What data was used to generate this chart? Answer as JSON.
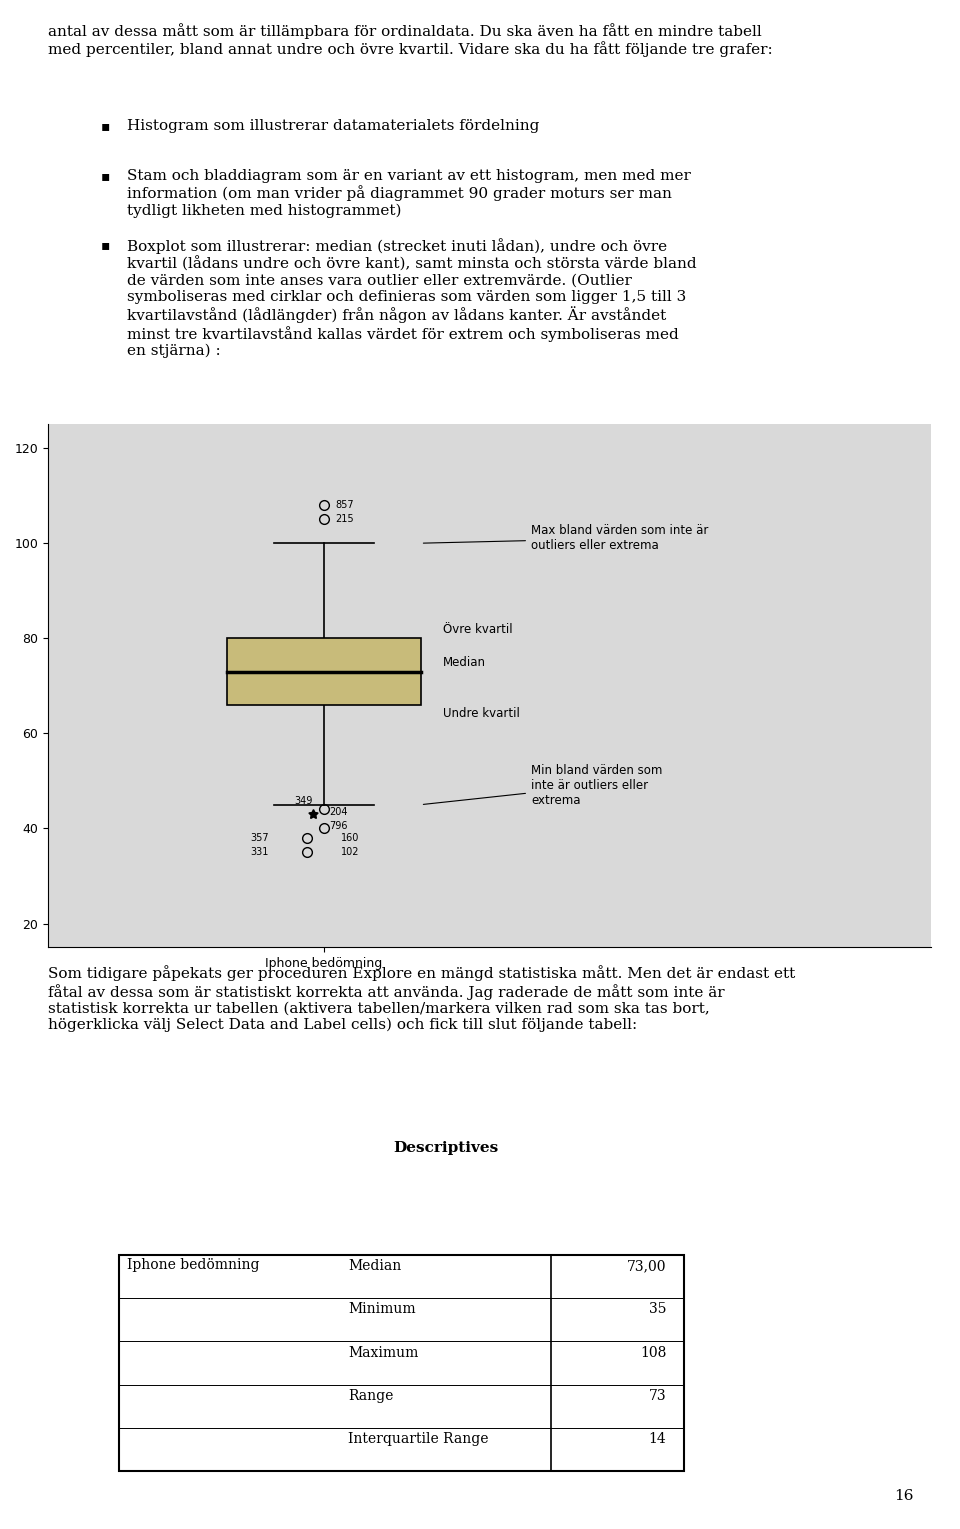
{
  "page_bg": "#ffffff",
  "text_color": "#000000",
  "boxplot": {
    "median": 73,
    "q1": 66,
    "q3": 80,
    "whisker_low": 45,
    "whisker_high": 100,
    "outlier_vals": [
      44,
      40,
      39,
      35
    ],
    "outlier_ids": [
      "349",
      "160",
      "331",
      "102"
    ],
    "star_val": 44,
    "star_ids": [
      "204",
      "796"
    ],
    "extreme_vals": [
      108,
      105
    ],
    "extreme_ids": [
      "857",
      "215"
    ],
    "box_facecolor": "#c8bb7a",
    "xlabel": "Iphone bedömning",
    "ylim": [
      15,
      125
    ],
    "yticks": [
      20,
      40,
      60,
      80,
      100,
      120
    ],
    "plot_bg": "#d9d9d9",
    "annotation_max": "Max bland värden som inte är\noutliers eller extrema",
    "annotation_min": "Min bland värden som\ninte är outliers eller\nextrema",
    "annotation_ovre": "Övre kvartil",
    "annotation_median": "Median",
    "annotation_undre": "Undre kvartil"
  },
  "table_title": "Descriptives",
  "table_data": {
    "row_label": "Iphone bedömning",
    "rows": [
      [
        "Median",
        "73,00"
      ],
      [
        "Minimum",
        "35"
      ],
      [
        "Maximum",
        "108"
      ],
      [
        "Range",
        "73"
      ],
      [
        "Interquartile Range",
        "14"
      ]
    ]
  },
  "page_number": "16"
}
